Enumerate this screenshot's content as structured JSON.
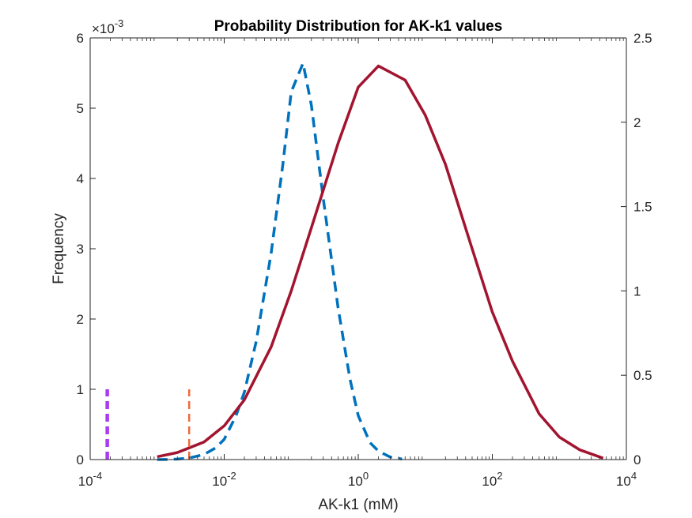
{
  "chart_data": {
    "type": "line",
    "title": "Probability Distribution for AK-k1 values",
    "xlabel": "AK-k1 (mM)",
    "ylabel": "Frequency",
    "y_exponent_label": "×10",
    "y_exponent_power": "-3",
    "x_scale": "log",
    "xlim": [
      0.0001,
      10000
    ],
    "x_ticks": [
      {
        "value": 0.0001,
        "base": "10",
        "power": "-4"
      },
      {
        "value": 0.01,
        "base": "10",
        "power": "-2"
      },
      {
        "value": 1,
        "base": "10",
        "power": "0"
      },
      {
        "value": 100,
        "base": "10",
        "power": "2"
      },
      {
        "value": 10000,
        "base": "10",
        "power": "4"
      }
    ],
    "y_left": {
      "lim": [
        0,
        6
      ],
      "ticks": [
        "0",
        "1",
        "2",
        "3",
        "4",
        "5",
        "6"
      ]
    },
    "y_right": {
      "lim": [
        0,
        2.5
      ],
      "ticks": [
        "0",
        "0.5",
        "1",
        "1.5",
        "2",
        "2.5"
      ]
    },
    "grid": false,
    "series": [
      {
        "axis": "right",
        "style": "dashed",
        "color": "#0072BD",
        "x": [
          0.001,
          0.0015,
          0.002,
          0.003,
          0.005,
          0.0075,
          0.01,
          0.015,
          0.02,
          0.03,
          0.05,
          0.075,
          0.1,
          0.15,
          0.2,
          0.3,
          0.5,
          0.75,
          1,
          1.5,
          2,
          3,
          4.5
        ],
        "y": [
          0.0,
          0.001,
          0.003,
          0.009,
          0.03,
          0.07,
          0.12,
          0.26,
          0.4,
          0.7,
          1.22,
          1.75,
          2.18,
          2.35,
          2.1,
          1.55,
          0.9,
          0.48,
          0.26,
          0.1,
          0.05,
          0.015,
          0.003
        ]
      },
      {
        "axis": "left",
        "style": "solid",
        "color": "#A2142F",
        "x": [
          0.001,
          0.002,
          0.005,
          0.01,
          0.02,
          0.05,
          0.1,
          0.2,
          0.5,
          1,
          2,
          5,
          10,
          20,
          50,
          100,
          200,
          500,
          1000,
          2000,
          4500
        ],
        "y": [
          4e-05,
          0.0001,
          0.00025,
          0.00048,
          0.00085,
          0.0016,
          0.0024,
          0.0033,
          0.0045,
          0.0053,
          0.0056,
          0.0054,
          0.0049,
          0.0042,
          0.003,
          0.0021,
          0.0014,
          0.00065,
          0.00032,
          0.00014,
          2e-05
        ]
      },
      {
        "axis": "left",
        "style": "dashed",
        "color": "#A93CF0",
        "x": [
          0.00018,
          0.00018
        ],
        "y": [
          0,
          0.001
        ]
      },
      {
        "axis": "left",
        "style": "dashed",
        "color": "#EE6A3C",
        "x": [
          0.003,
          0.003
        ],
        "y": [
          0,
          0.001
        ]
      }
    ]
  }
}
